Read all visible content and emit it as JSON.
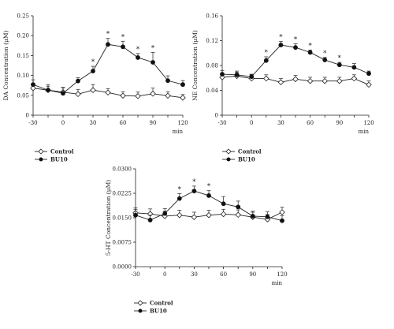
{
  "chart_data": [
    {
      "type": "line",
      "ylabel": "DA Concentration (μM)",
      "xunit": "min",
      "x": [
        -30,
        -15,
        0,
        15,
        30,
        45,
        60,
        75,
        90,
        105,
        120
      ],
      "xticks": [
        -30,
        0,
        30,
        60,
        90,
        120
      ],
      "ylim": [
        0,
        0.25
      ],
      "yticks": [
        "0",
        "0.05",
        "0.10",
        "0.15",
        "0.20",
        "0.25"
      ],
      "ytick_values": [
        0,
        0.05,
        0.1,
        0.15,
        0.2,
        0.25
      ],
      "series": [
        {
          "name": "Control",
          "marker": "open-diamond",
          "values": [
            0.068,
            0.063,
            0.058,
            0.053,
            0.063,
            0.057,
            0.049,
            0.048,
            0.054,
            0.049,
            0.044
          ],
          "errors": [
            0.012,
            0.014,
            0.012,
            0.012,
            0.014,
            0.01,
            0.01,
            0.01,
            0.014,
            0.01,
            0.008
          ]
        },
        {
          "name": "BU10",
          "marker": "filled-circle",
          "values": [
            0.077,
            0.063,
            0.055,
            0.086,
            0.111,
            0.178,
            0.172,
            0.145,
            0.133,
            0.087,
            0.077
          ],
          "errors": [
            0.012,
            0.01,
            0.014,
            0.008,
            0.012,
            0.015,
            0.014,
            0.01,
            0.025,
            0.012,
            0.01
          ]
        }
      ],
      "significant_x": [
        30,
        45,
        60,
        75,
        90
      ]
    },
    {
      "type": "line",
      "ylabel": "NE Concentration (μM)",
      "xunit": "min",
      "x": [
        -30,
        -15,
        0,
        15,
        30,
        45,
        60,
        75,
        90,
        105,
        120
      ],
      "xticks": [
        -30,
        0,
        30,
        60,
        90,
        120
      ],
      "ylim": [
        0,
        0.16
      ],
      "yticks": [
        "0",
        "0.04",
        "0.08",
        "0.12",
        "0.16"
      ],
      "ytick_values": [
        0,
        0.04,
        0.08,
        0.12,
        0.16
      ],
      "series": [
        {
          "name": "Control",
          "marker": "open-diamond",
          "values": [
            0.061,
            0.063,
            0.059,
            0.059,
            0.053,
            0.058,
            0.055,
            0.055,
            0.055,
            0.059,
            0.049
          ],
          "errors": [
            0.006,
            0.006,
            0.006,
            0.006,
            0.006,
            0.006,
            0.006,
            0.006,
            0.006,
            0.006,
            0.006
          ]
        },
        {
          "name": "BU10",
          "marker": "filled-circle",
          "values": [
            0.066,
            0.065,
            0.062,
            0.088,
            0.113,
            0.109,
            0.101,
            0.089,
            0.081,
            0.077,
            0.067
          ],
          "errors": [
            0.006,
            0.006,
            0.004,
            0.006,
            0.006,
            0.006,
            0.004,
            0.004,
            0.004,
            0.006,
            0.004
          ]
        }
      ],
      "significant_x": [
        15,
        30,
        45,
        60,
        75,
        90
      ]
    },
    {
      "type": "line",
      "ylabel": "5-HT Concentration (μM)",
      "xunit": "min",
      "x": [
        -30,
        -15,
        0,
        15,
        30,
        45,
        60,
        75,
        90,
        105,
        120
      ],
      "xticks": [
        -30,
        0,
        30,
        60,
        90,
        120
      ],
      "ylim": [
        0,
        0.03
      ],
      "yticks": [
        "0.0000",
        "0.0075",
        "0.0150",
        "0.0225",
        "0.0300"
      ],
      "ytick_values": [
        0,
        0.0075,
        0.015,
        0.0225,
        0.03
      ],
      "series": [
        {
          "name": "Control",
          "marker": "open-diamond",
          "values": [
            0.0165,
            0.0162,
            0.0155,
            0.0158,
            0.0152,
            0.0158,
            0.0161,
            0.0159,
            0.0152,
            0.0145,
            0.0167
          ],
          "errors": [
            0.0015,
            0.0015,
            0.0015,
            0.0015,
            0.0015,
            0.0015,
            0.0015,
            0.0015,
            0.0015,
            0.0015,
            0.0015
          ]
        },
        {
          "name": "BU10",
          "marker": "filled-circle",
          "values": [
            0.0158,
            0.0143,
            0.0163,
            0.0209,
            0.0232,
            0.0218,
            0.0193,
            0.0183,
            0.0155,
            0.0153,
            0.0141
          ],
          "errors": [
            0.0018,
            0.0015,
            0.0015,
            0.0015,
            0.0015,
            0.0015,
            0.0022,
            0.0018,
            0.0015,
            0.0015,
            0.0015
          ]
        }
      ],
      "significant_x": [
        15,
        30,
        45
      ]
    }
  ],
  "legend": {
    "control": "Control",
    "bu10": "BU10"
  }
}
